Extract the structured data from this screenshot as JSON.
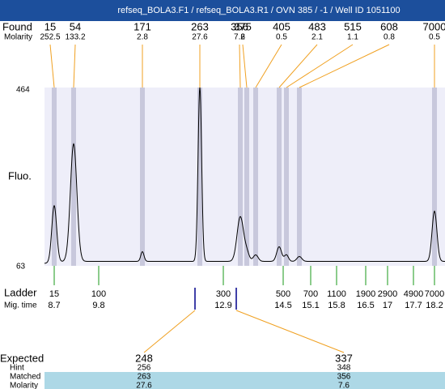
{
  "title": "refseq_BOLA3.F1 / refseq_BOLA3.R1 / OVN 385 / -1 / Well ID 1051100",
  "found": {
    "label": "Found",
    "molarity_label": "Molarity",
    "peaks": [
      {
        "size": 15,
        "molarity": 252.5
      },
      {
        "size": 54,
        "molarity": 133.2
      },
      {
        "size": 171,
        "molarity": 2.8
      },
      {
        "size": 263,
        "molarity": 27.6
      },
      {
        "size": 356,
        "molarity": 7.6
      },
      {
        "size": 375,
        "molarity": 2
      },
      {
        "size": 405,
        "molarity": 0.5
      },
      {
        "size": 483,
        "molarity": 2.1
      },
      {
        "size": 515,
        "molarity": 1.1
      },
      {
        "size": 608,
        "molarity": 0.8
      },
      {
        "size": 7000,
        "molarity": 0.5
      }
    ]
  },
  "axis": {
    "label": "Fluo.",
    "max": 464,
    "min": 63
  },
  "ladder": {
    "label": "Ladder",
    "time_label": "Mig. time",
    "bands": [
      {
        "size": 15,
        "time": 8.7
      },
      {
        "size": 100,
        "time": 9.8
      },
      {
        "size": 300,
        "time": 12.9
      },
      {
        "size": 500,
        "time": 14.5
      },
      {
        "size": 700,
        "time": 15.1
      },
      {
        "size": 1100,
        "time": 15.8
      },
      {
        "size": 1900,
        "time": 16.5
      },
      {
        "size": 2900,
        "time": 17
      },
      {
        "size": 4900,
        "time": 17.7
      },
      {
        "size": 7000,
        "time": 18.2
      }
    ]
  },
  "expected": {
    "labels": [
      "Expected",
      "Hint",
      "Matched",
      "Molarity"
    ],
    "columns": [
      [
        248,
        256,
        263,
        27.6
      ],
      [
        337,
        348,
        356,
        7.6
      ]
    ]
  }
}
